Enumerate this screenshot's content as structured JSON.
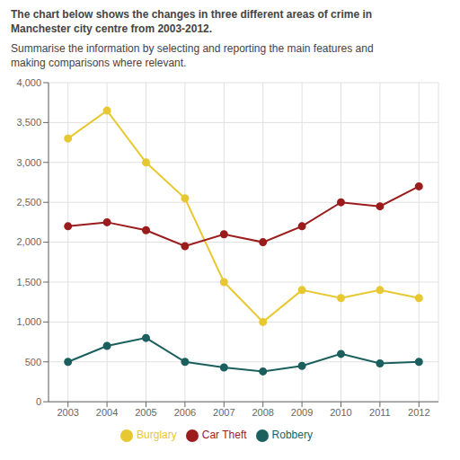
{
  "chart_data": {
    "type": "line",
    "title": "The chart below shows the changes in three different areas of crime in\nManchester city centre from 2003-2012.",
    "subtitle": "Summarise the information by selecting and reporting the main features and\nmaking comparisons where relevant.",
    "x": [
      2003,
      2004,
      2005,
      2006,
      2007,
      2008,
      2009,
      2010,
      2011,
      2012
    ],
    "series": [
      {
        "name": "Burglary",
        "color": "#E8C832",
        "marker": "circle",
        "values": [
          3300,
          3650,
          3000,
          2550,
          1500,
          1000,
          1400,
          1300,
          1400,
          1300
        ]
      },
      {
        "name": "Car Theft",
        "color": "#9B1C1C",
        "marker": "circle",
        "values": [
          2200,
          2250,
          2150,
          1950,
          2100,
          2000,
          2200,
          2500,
          2450,
          2700
        ]
      },
      {
        "name": "Robbery",
        "color": "#1C5F5F",
        "marker": "circle",
        "values": [
          500,
          700,
          800,
          500,
          430,
          380,
          450,
          600,
          480,
          500
        ]
      }
    ],
    "xlim": [
      2002.5,
      2012.5
    ],
    "xticks": [
      2003,
      2004,
      2005,
      2006,
      2007,
      2008,
      2009,
      2010,
      2011,
      2012
    ],
    "ylim": [
      0,
      4000
    ],
    "yticks": [
      0,
      500,
      {
        "value": 1000,
        "label": "1,000"
      },
      {
        "value": 1500,
        "label": "1,500"
      },
      {
        "value": 2000,
        "label": "2,000"
      },
      {
        "value": 2500,
        "label": "2,500"
      },
      {
        "value": 3000,
        "label": "3,000"
      },
      {
        "value": 3500,
        "label": "3,500"
      },
      {
        "value": 4000,
        "label": "4,000"
      }
    ],
    "grid": true,
    "legend": "bottom"
  }
}
